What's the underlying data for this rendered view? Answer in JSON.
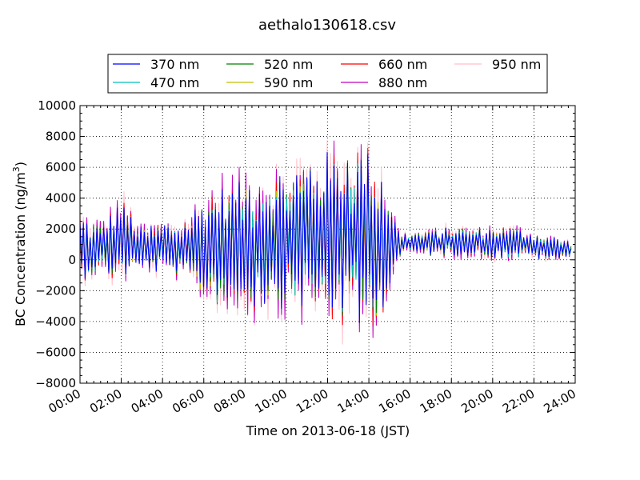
{
  "chart_data": {
    "type": "line",
    "title": "aethalo130618.csv",
    "xlabel": "Time on 2013-06-18 (JST)",
    "ylabel_main": "BC Concentration (ng/m",
    "ylabel_sup": "3",
    "ylabel_close": ")",
    "xlim": [
      "00:00",
      "24:00"
    ],
    "ylim": [
      -8000,
      10000
    ],
    "grid": true,
    "legend_placement": "top-center",
    "x_tick_labels": [
      "00:00",
      "02:00",
      "04:00",
      "06:00",
      "08:00",
      "10:00",
      "12:00",
      "14:00",
      "16:00",
      "18:00",
      "20:00",
      "22:00",
      "24:00"
    ],
    "y_tick_labels": [
      "−8000",
      "−6000",
      "−4000",
      "−2000",
      "0",
      "2000",
      "4000",
      "6000",
      "8000",
      "10000"
    ],
    "y_ticks": [
      -8000,
      -6000,
      -4000,
      -2000,
      0,
      2000,
      4000,
      6000,
      8000,
      10000
    ],
    "series": [
      {
        "name": "370 nm",
        "color": "#0000ff"
      },
      {
        "name": "470 nm",
        "color": "#00bfbf"
      },
      {
        "name": "520 nm",
        "color": "#008000"
      },
      {
        "name": "590 nm",
        "color": "#bfbf00"
      },
      {
        "name": "660 nm",
        "color": "#ff0000"
      },
      {
        "name": "880 nm",
        "color": "#bf00bf"
      },
      {
        "name": "950 nm",
        "color": "#ffc0cb"
      }
    ],
    "amplitude_envelope": {
      "x_hours": [
        0,
        1,
        2,
        3,
        4,
        5,
        6,
        7,
        8,
        9,
        10,
        11,
        12,
        13,
        13.5,
        14,
        14.5,
        15,
        15.5,
        16,
        17,
        18,
        19,
        20,
        21,
        22,
        23,
        24
      ],
      "center": [
        800,
        700,
        1300,
        700,
        800,
        600,
        800,
        900,
        1200,
        1200,
        1400,
        1600,
        1600,
        1600,
        1500,
        1400,
        1300,
        1200,
        900,
        1100,
        1100,
        1200,
        1100,
        1100,
        1100,
        900,
        700,
        600
      ],
      "spread": [
        2200,
        1700,
        2800,
        1500,
        1800,
        1900,
        3500,
        4300,
        4500,
        4500,
        4700,
        5300,
        5600,
        6300,
        6800,
        6000,
        5400,
        3300,
        900,
        700,
        900,
        1000,
        1000,
        1100,
        1100,
        900,
        900,
        500
      ]
    }
  }
}
